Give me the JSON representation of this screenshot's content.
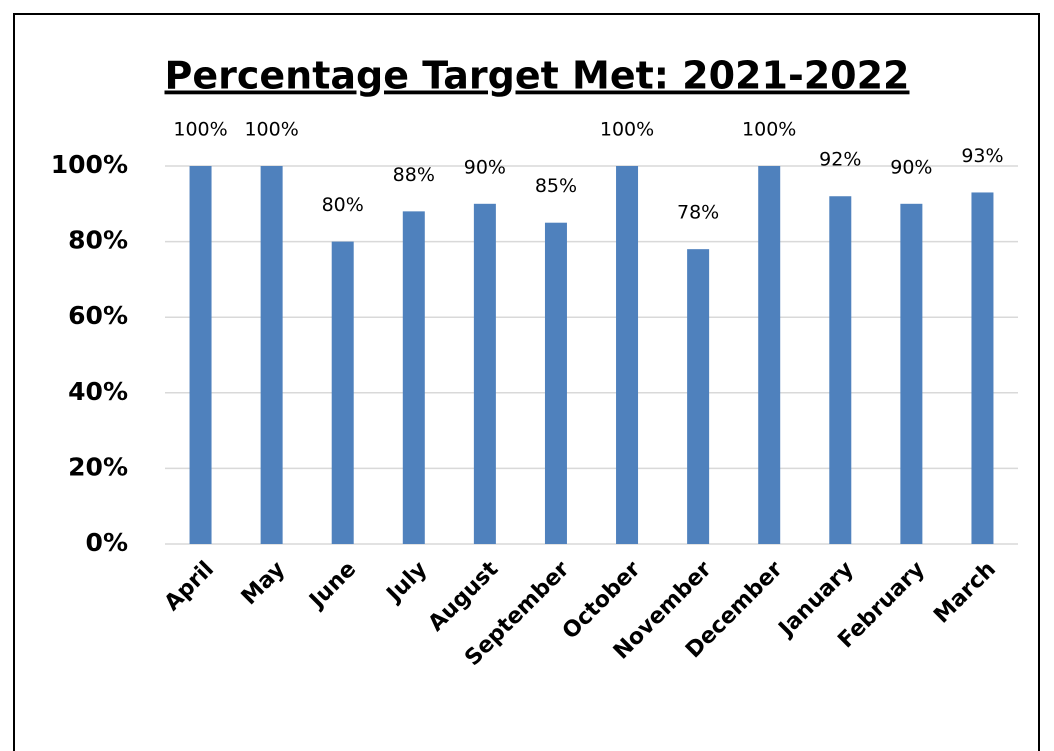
{
  "chart_data": {
    "type": "bar",
    "title": "Percentage Target Met: 2021-2022",
    "categories": [
      "April",
      "May",
      "June",
      "July",
      "August",
      "September",
      "October",
      "November",
      "December",
      "January",
      "February",
      "March"
    ],
    "values": [
      100,
      100,
      80,
      88,
      90,
      85,
      100,
      78,
      100,
      92,
      90,
      93
    ],
    "value_labels": [
      "100%",
      "100%",
      "80%",
      "88%",
      "90%",
      "85%",
      "100%",
      "78%",
      "100%",
      "92%",
      "90%",
      "93%"
    ],
    "color": "#4f81bd",
    "ylim": [
      0,
      100
    ],
    "yticks": [
      {
        "value": 0,
        "label": "0%"
      },
      {
        "value": 20,
        "label": "20%"
      },
      {
        "value": 40,
        "label": "40%"
      },
      {
        "value": 60,
        "label": "60%"
      },
      {
        "value": 80,
        "label": "80%"
      },
      {
        "value": 100,
        "label": "100%"
      }
    ],
    "grid": true
  }
}
